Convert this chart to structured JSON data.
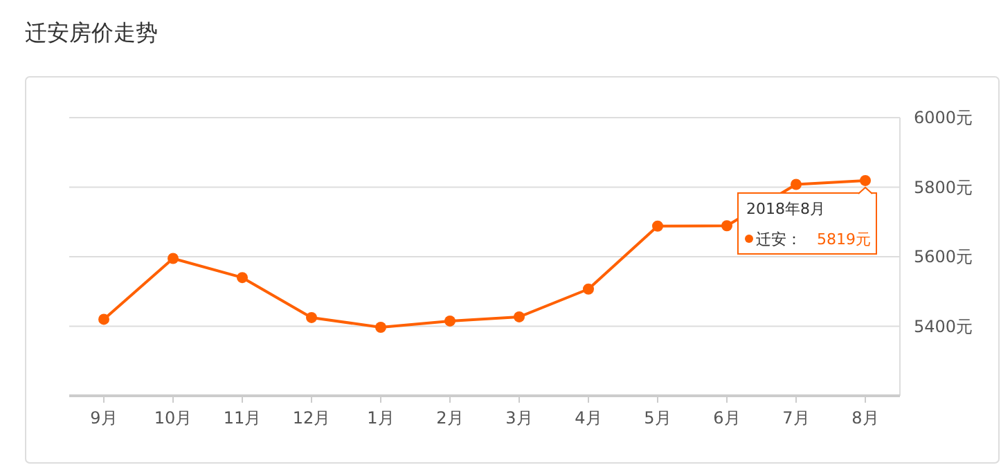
{
  "chart_data": {
    "type": "line",
    "title": "迁安房价走势",
    "categories": [
      "9月",
      "10月",
      "11月",
      "12月",
      "1月",
      "2月",
      "3月",
      "4月",
      "5月",
      "6月",
      "7月",
      "8月"
    ],
    "series": [
      {
        "name": "迁安：",
        "color": "#ff6000",
        "values": [
          5420,
          5595,
          5540,
          5425,
          5397,
          5415,
          5427,
          5507,
          5688,
          5689,
          5808,
          5819
        ],
        "value_labels": [
          null,
          null,
          null,
          null,
          null,
          null,
          null,
          null,
          null,
          null,
          null,
          "5819元"
        ]
      }
    ],
    "annotations": [
      {
        "text": "2018年8月",
        "x": "8月",
        "y": 5819
      }
    ],
    "ylim": [
      5200,
      6000
    ],
    "yticks": [
      {
        "value": 5400,
        "label": "5400元"
      },
      {
        "value": 5600,
        "label": "5600元"
      },
      {
        "value": 5800,
        "label": "5800元"
      },
      {
        "value": 6000,
        "label": "6000元"
      }
    ],
    "grid": "y",
    "marker": "circle",
    "line_style": "solid"
  }
}
